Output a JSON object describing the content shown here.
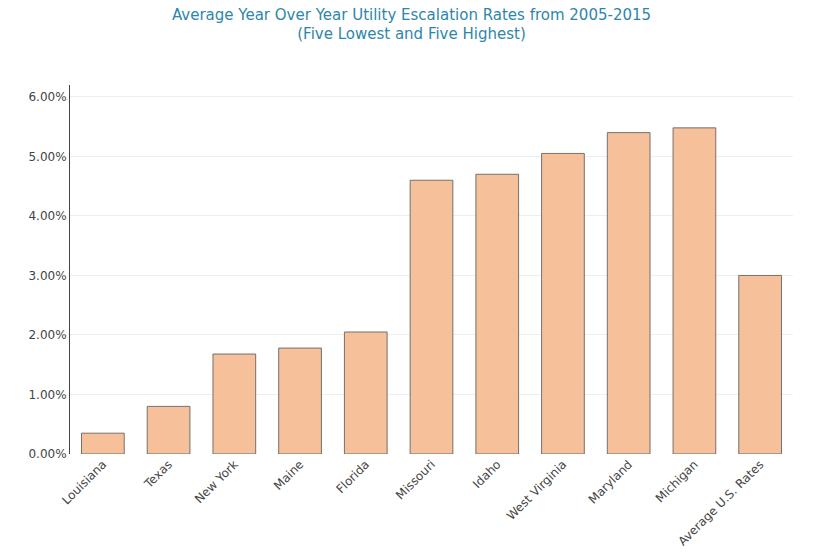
{
  "chart_data": {
    "type": "bar",
    "title": "Average Year Over Year Utility Escalation Rates from 2005-2015",
    "subtitle": "(Five Lowest and Five Highest)",
    "categories": [
      "Louisiana",
      "Texas",
      "New York",
      "Maine",
      "Florida",
      "Missouri",
      "Idaho",
      "West Virginia",
      "Maryland",
      "Michigan",
      "Average U.S. Rates"
    ],
    "values": [
      0.0035,
      0.008,
      0.0168,
      0.0178,
      0.0205,
      0.046,
      0.047,
      0.0505,
      0.054,
      0.0548,
      0.03
    ],
    "color": "#F5C09A",
    "ylim": [
      0,
      0.062
    ],
    "yticks": [
      {
        "value": 0.0,
        "label": "0.00%"
      },
      {
        "value": 0.01,
        "label": "1.00%"
      },
      {
        "value": 0.02,
        "label": "2.00%"
      },
      {
        "value": 0.03,
        "label": "3.00%"
      },
      {
        "value": 0.04,
        "label": "4.00%"
      },
      {
        "value": 0.05,
        "label": "5.00%"
      },
      {
        "value": 0.06,
        "label": "6.00%"
      }
    ],
    "grid": true
  }
}
